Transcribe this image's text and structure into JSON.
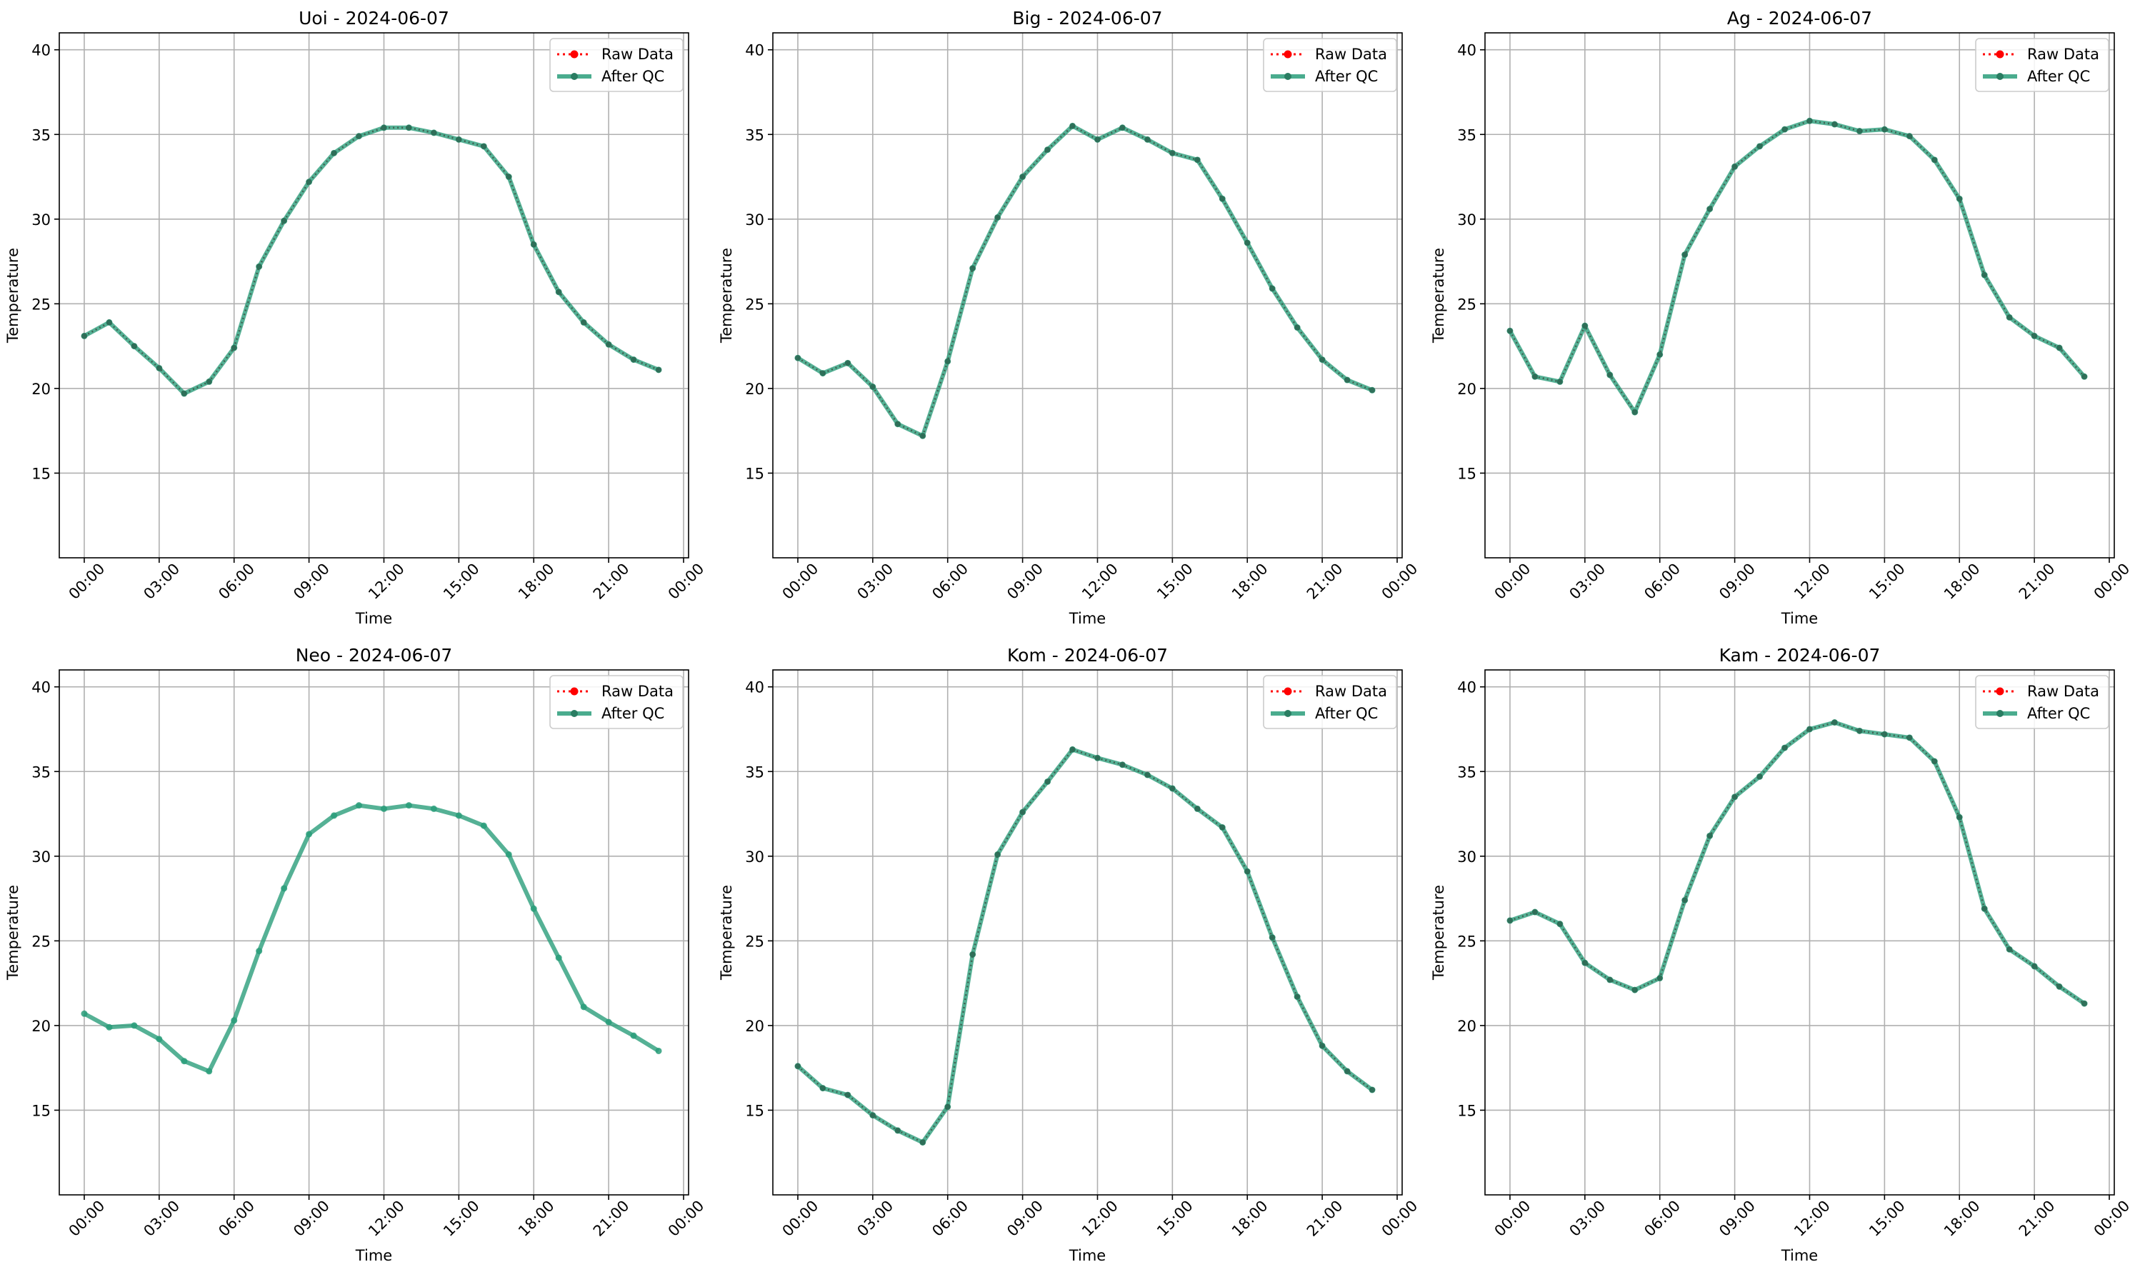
{
  "chart_data": [
    {
      "type": "line",
      "title": "Uoi - 2024-06-07",
      "xlabel": "Time",
      "ylabel": "Temperature",
      "x_hours": [
        0,
        1,
        2,
        3,
        4,
        5,
        6,
        7,
        8,
        9,
        10,
        11,
        12,
        13,
        14,
        15,
        16,
        17,
        18,
        19,
        20,
        21,
        22,
        23
      ],
      "xticks": [
        "00:00",
        "03:00",
        "06:00",
        "09:00",
        "12:00",
        "15:00",
        "18:00",
        "21:00",
        "00:00"
      ],
      "yticks": [
        "15",
        "20",
        "25",
        "30",
        "35",
        "40"
      ],
      "ylim": [
        10,
        41
      ],
      "xlim": [
        -1,
        24.2
      ],
      "grid": true,
      "legend_position": "top-right",
      "series": [
        {
          "name": "Raw Data",
          "color": "#ff0000",
          "style": "dotted-markers",
          "values": [
            23.1,
            23.9,
            22.5,
            21.2,
            19.7,
            20.4,
            22.4,
            27.2,
            29.9,
            32.2,
            33.9,
            34.9,
            35.4,
            35.4,
            35.1,
            34.7,
            34.3,
            32.5,
            28.5,
            25.7,
            23.9,
            22.6,
            21.7,
            21.1
          ]
        },
        {
          "name": "After QC",
          "color": "#2a9d7a",
          "style": "solid-markers",
          "values": [
            23.1,
            23.9,
            22.5,
            21.2,
            19.7,
            20.4,
            22.4,
            27.2,
            29.9,
            32.2,
            33.9,
            34.9,
            35.4,
            35.4,
            35.1,
            34.7,
            34.3,
            32.5,
            28.5,
            25.7,
            23.9,
            22.6,
            21.7,
            21.1
          ]
        }
      ]
    },
    {
      "type": "line",
      "title": "Big - 2024-06-07",
      "xlabel": "Time",
      "ylabel": "Temperature",
      "x_hours": [
        0,
        1,
        2,
        3,
        4,
        5,
        6,
        7,
        8,
        9,
        10,
        11,
        12,
        13,
        14,
        15,
        16,
        17,
        18,
        19,
        20,
        21,
        22,
        23
      ],
      "xticks": [
        "00:00",
        "03:00",
        "06:00",
        "09:00",
        "12:00",
        "15:00",
        "18:00",
        "21:00",
        "00:00"
      ],
      "yticks": [
        "15",
        "20",
        "25",
        "30",
        "35",
        "40"
      ],
      "ylim": [
        10,
        41
      ],
      "xlim": [
        -1,
        24.2
      ],
      "grid": true,
      "legend_position": "top-right",
      "series": [
        {
          "name": "Raw Data",
          "color": "#ff0000",
          "style": "dotted-markers",
          "values": [
            21.8,
            20.9,
            21.5,
            20.1,
            17.9,
            17.2,
            21.6,
            27.1,
            30.1,
            32.5,
            34.1,
            35.5,
            34.7,
            35.4,
            34.7,
            33.9,
            33.5,
            31.2,
            28.6,
            25.9,
            23.6,
            21.7,
            20.5,
            19.9
          ]
        },
        {
          "name": "After QC",
          "color": "#2a9d7a",
          "style": "solid-markers",
          "values": [
            21.8,
            20.9,
            21.5,
            20.1,
            17.9,
            17.2,
            21.6,
            27.1,
            30.1,
            32.5,
            34.1,
            35.5,
            34.7,
            35.4,
            34.7,
            33.9,
            33.5,
            31.2,
            28.6,
            25.9,
            23.6,
            21.7,
            20.5,
            19.9
          ]
        }
      ]
    },
    {
      "type": "line",
      "title": "Ag - 2024-06-07",
      "xlabel": "Time",
      "ylabel": "Temperature",
      "x_hours": [
        0,
        1,
        2,
        3,
        4,
        5,
        6,
        7,
        8,
        9,
        10,
        11,
        12,
        13,
        14,
        15,
        16,
        17,
        18,
        19,
        20,
        21,
        22,
        23
      ],
      "xticks": [
        "00:00",
        "03:00",
        "06:00",
        "09:00",
        "12:00",
        "15:00",
        "18:00",
        "21:00",
        "00:00"
      ],
      "yticks": [
        "15",
        "20",
        "25",
        "30",
        "35",
        "40"
      ],
      "ylim": [
        10,
        41
      ],
      "xlim": [
        -1,
        24.2
      ],
      "grid": true,
      "legend_position": "top-right",
      "series": [
        {
          "name": "Raw Data",
          "color": "#ff0000",
          "style": "dotted-markers",
          "values": [
            23.4,
            20.7,
            20.4,
            23.7,
            20.8,
            18.6,
            22.0,
            27.9,
            30.6,
            33.1,
            34.3,
            35.3,
            35.8,
            35.6,
            35.2,
            35.3,
            34.9,
            33.5,
            31.2,
            26.7,
            24.2,
            23.1,
            22.4,
            20.7
          ]
        },
        {
          "name": "After QC",
          "color": "#2a9d7a",
          "style": "solid-markers",
          "values": [
            23.4,
            20.7,
            20.4,
            23.7,
            20.8,
            18.6,
            22.0,
            27.9,
            30.6,
            33.1,
            34.3,
            35.3,
            35.8,
            35.6,
            35.2,
            35.3,
            34.9,
            33.5,
            31.2,
            26.7,
            24.2,
            23.1,
            22.4,
            20.7
          ]
        }
      ]
    },
    {
      "type": "line",
      "title": "Neo - 2024-06-07",
      "xlabel": "Time",
      "ylabel": "Temperature",
      "x_hours": [
        0,
        1,
        2,
        3,
        4,
        5,
        6,
        7,
        8,
        9,
        10,
        11,
        12,
        13,
        14,
        15,
        16,
        17,
        18,
        19,
        20,
        21,
        22,
        23
      ],
      "xticks": [
        "00:00",
        "03:00",
        "06:00",
        "09:00",
        "12:00",
        "15:00",
        "18:00",
        "21:00",
        "00:00"
      ],
      "yticks": [
        "15",
        "20",
        "25",
        "30",
        "35",
        "40"
      ],
      "ylim": [
        10,
        41
      ],
      "xlim": [
        -1,
        24.2
      ],
      "grid": true,
      "legend_position": "top-right",
      "series": [
        {
          "name": "Raw Data",
          "color": "#ff0000",
          "style": "dotted-markers",
          "values": []
        },
        {
          "name": "After QC",
          "color": "#2a9d7a",
          "style": "solid-markers",
          "values": [
            20.7,
            19.9,
            20.0,
            19.2,
            17.9,
            17.3,
            20.3,
            24.4,
            28.1,
            31.3,
            32.4,
            33.0,
            32.8,
            33.0,
            32.8,
            32.4,
            31.8,
            30.1,
            26.9,
            24.0,
            21.1,
            20.2,
            19.4,
            18.5
          ]
        }
      ]
    },
    {
      "type": "line",
      "title": "Kom - 2024-06-07",
      "xlabel": "Time",
      "ylabel": "Temperature",
      "x_hours": [
        0,
        1,
        2,
        3,
        4,
        5,
        6,
        7,
        8,
        9,
        10,
        11,
        12,
        13,
        14,
        15,
        16,
        17,
        18,
        19,
        20,
        21,
        22,
        23
      ],
      "xticks": [
        "00:00",
        "03:00",
        "06:00",
        "09:00",
        "12:00",
        "15:00",
        "18:00",
        "21:00",
        "00:00"
      ],
      "yticks": [
        "15",
        "20",
        "25",
        "30",
        "35",
        "40"
      ],
      "ylim": [
        10,
        41
      ],
      "xlim": [
        -1,
        24.2
      ],
      "grid": true,
      "legend_position": "top-right",
      "series": [
        {
          "name": "Raw Data",
          "color": "#ff0000",
          "style": "dotted-markers",
          "values": [
            17.6,
            16.3,
            15.9,
            14.7,
            13.8,
            13.1,
            15.2,
            24.2,
            30.1,
            32.6,
            34.4,
            36.3,
            35.8,
            35.4,
            34.8,
            34.0,
            32.8,
            31.7,
            29.1,
            25.2,
            21.7,
            18.8,
            17.3,
            16.2
          ]
        },
        {
          "name": "After QC",
          "color": "#2a9d7a",
          "style": "solid-markers",
          "values": [
            17.6,
            16.3,
            15.9,
            14.7,
            13.8,
            13.1,
            15.2,
            24.2,
            30.1,
            32.6,
            34.4,
            36.3,
            35.8,
            35.4,
            34.8,
            34.0,
            32.8,
            31.7,
            29.1,
            25.2,
            21.7,
            18.8,
            17.3,
            16.2
          ]
        }
      ]
    },
    {
      "type": "line",
      "title": "Kam - 2024-06-07",
      "xlabel": "Time",
      "ylabel": "Temperature",
      "x_hours": [
        0,
        1,
        2,
        3,
        4,
        5,
        6,
        7,
        8,
        9,
        10,
        11,
        12,
        13,
        14,
        15,
        16,
        17,
        18,
        19,
        20,
        21,
        22,
        23
      ],
      "xticks": [
        "00:00",
        "03:00",
        "06:00",
        "09:00",
        "12:00",
        "15:00",
        "18:00",
        "21:00",
        "00:00"
      ],
      "yticks": [
        "15",
        "20",
        "25",
        "30",
        "35",
        "40"
      ],
      "ylim": [
        10,
        41
      ],
      "xlim": [
        -1,
        24.2
      ],
      "grid": true,
      "legend_position": "top-right",
      "series": [
        {
          "name": "Raw Data",
          "color": "#ff0000",
          "style": "dotted-markers",
          "values": [
            26.2,
            26.7,
            26.0,
            23.7,
            22.7,
            22.1,
            22.8,
            27.4,
            31.2,
            33.5,
            34.7,
            36.4,
            37.5,
            37.9,
            37.4,
            37.2,
            37.0,
            35.6,
            32.3,
            26.9,
            24.5,
            23.5,
            22.3,
            21.3
          ]
        },
        {
          "name": "After QC",
          "color": "#2a9d7a",
          "style": "solid-markers",
          "values": [
            26.2,
            26.7,
            26.0,
            23.7,
            22.7,
            22.1,
            22.8,
            27.4,
            31.2,
            33.5,
            34.7,
            36.4,
            37.5,
            37.9,
            37.4,
            37.2,
            37.0,
            35.6,
            32.3,
            26.9,
            24.5,
            23.5,
            22.3,
            21.3
          ]
        }
      ]
    }
  ]
}
